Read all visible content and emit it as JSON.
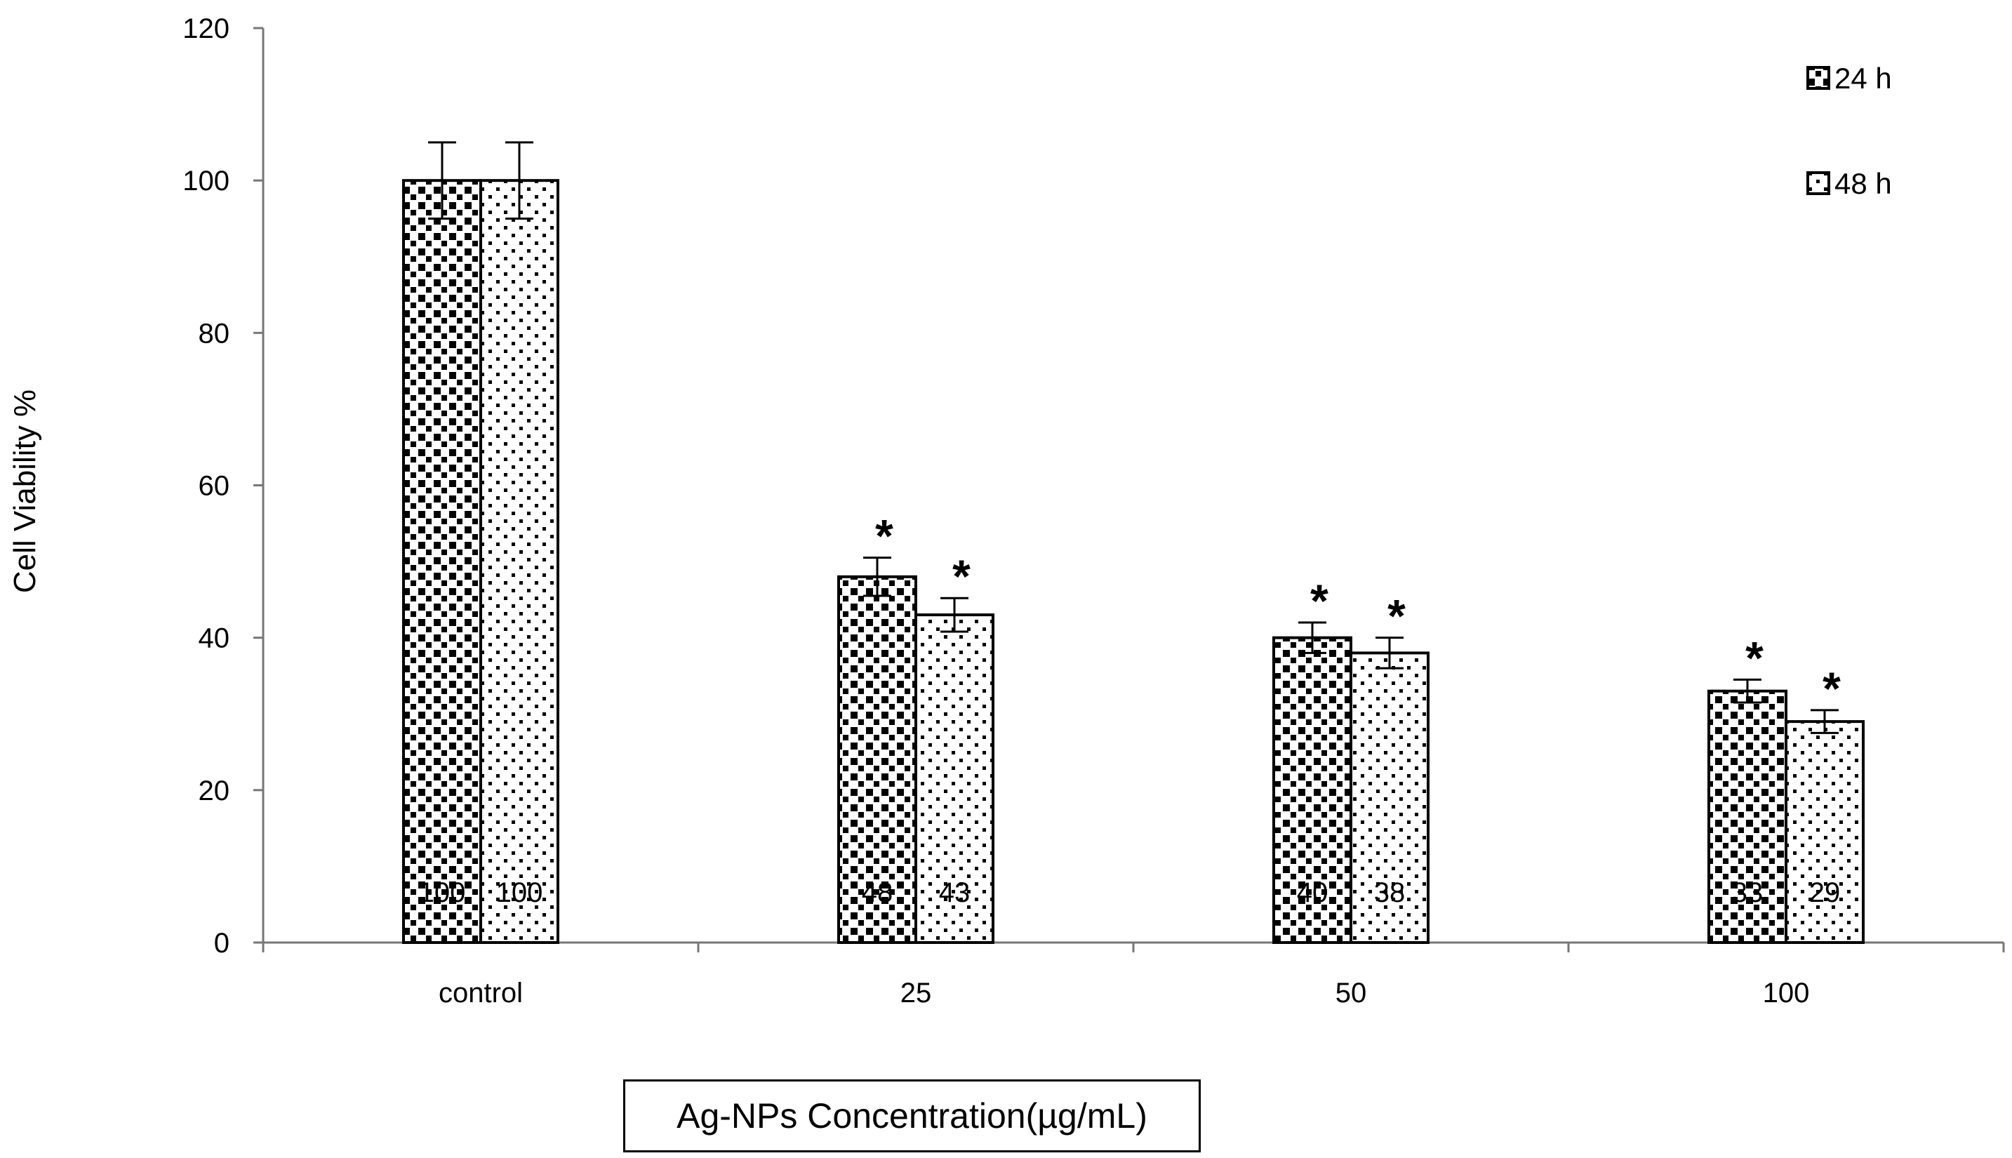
{
  "chart_data": {
    "type": "bar",
    "title": "",
    "xlabel": "Ag-NPs Concentration(µg/mL)",
    "ylabel": "Cell Viability %",
    "ylim": [
      0,
      120
    ],
    "yticks": [
      0,
      20,
      40,
      60,
      80,
      100,
      120
    ],
    "categories": [
      "control",
      "25",
      "50",
      "100"
    ],
    "series": [
      {
        "name": "24 h",
        "values": [
          100,
          48,
          40,
          33
        ],
        "errors": [
          5,
          2.5,
          2,
          1.5
        ],
        "pattern": "dense-squares",
        "value_labels": [
          "100",
          "48",
          "40",
          "33"
        ]
      },
      {
        "name": "48 h",
        "values": [
          100,
          43,
          38,
          29
        ],
        "errors": [
          5,
          2.2,
          2,
          1.5
        ],
        "pattern": "sparse-dots",
        "value_labels": [
          "100",
          "43",
          "38",
          "29"
        ]
      }
    ],
    "significance": [
      {
        "series": 0,
        "category": 1,
        "mark": "*"
      },
      {
        "series": 1,
        "category": 1,
        "mark": "*"
      },
      {
        "series": 0,
        "category": 2,
        "mark": "*"
      },
      {
        "series": 1,
        "category": 2,
        "mark": "*"
      },
      {
        "series": 0,
        "category": 3,
        "mark": "*"
      },
      {
        "series": 1,
        "category": 3,
        "mark": "*"
      }
    ],
    "legend_position": "top-right",
    "grid": false
  }
}
